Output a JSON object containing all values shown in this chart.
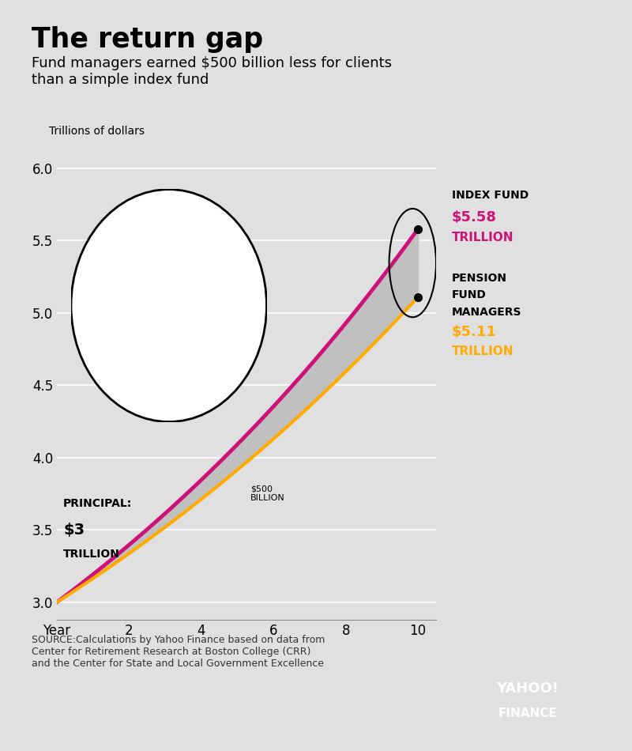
{
  "title": "The return gap",
  "subtitle": "Fund managers earned $500 billion less for clients\nthan a simple index fund",
  "ylabel": "Trillions of dollars",
  "xlabel": "Year",
  "background_color": "#e0e0e0",
  "plot_bg_color": "#e0e0e0",
  "index_color": "#cc1177",
  "pension_color": "#ffaa00",
  "fill_color": "#c0c0c0",
  "principal": 3.0,
  "index_final": 5.58,
  "pension_final": 5.11,
  "ylim_min": 2.88,
  "ylim_max": 6.15,
  "xlim_min": 0,
  "xlim_max": 10.5,
  "source_text": "SOURCE:Calculations by Yahoo Finance based on data from\nCenter for Retirement Research at Boston College (CRR)\nand the Center for State and Local Government Excellence",
  "yahoo_color": "#5b1fa0"
}
